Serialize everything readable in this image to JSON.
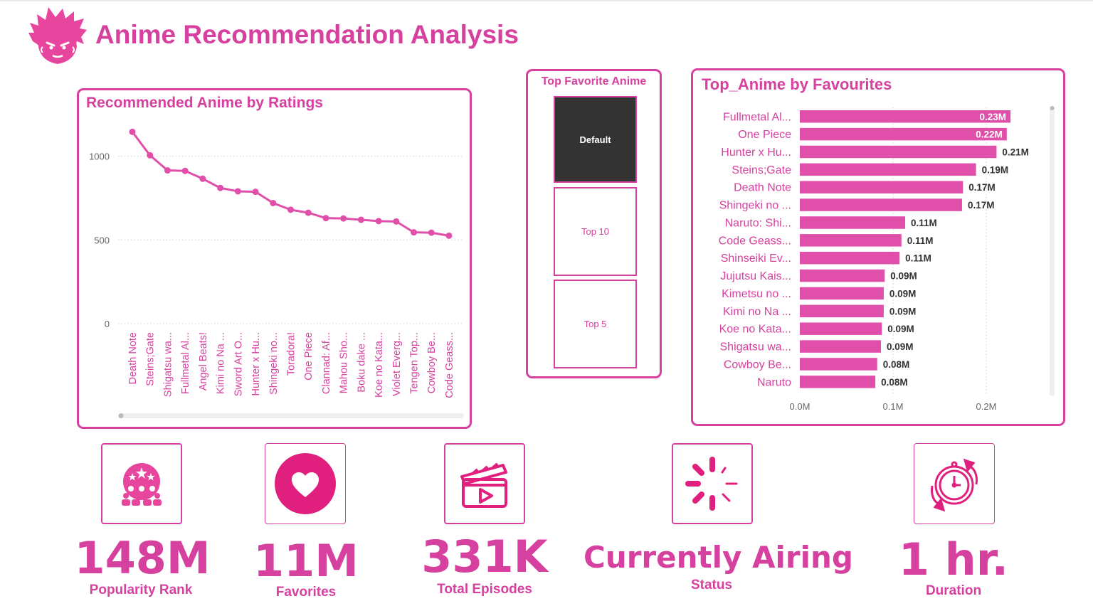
{
  "title": "Anime Recommendation Analysis",
  "line_chart": {
    "title": "Recommended Anime by Ratings",
    "chart_data": {
      "type": "line",
      "categories": [
        "Death Note",
        "Steins;Gate",
        "Shigatsu wa...",
        "Fullmetal Al...",
        "Angel Beats!",
        "Kimi no Na ...",
        "Sword Art O...",
        "Hunter x Hu...",
        "Shingeki no...",
        "Toradora!",
        "One Piece",
        "Clannad: Af...",
        "Mahou Sho...",
        "Boku dake ...",
        "Koe no Kata...",
        "Violet Everg...",
        "Tengen Top...",
        "Cowboy Be...",
        "Code Geass..."
      ],
      "values": [
        1145,
        1005,
        915,
        912,
        865,
        810,
        790,
        787,
        720,
        680,
        662,
        630,
        628,
        620,
        612,
        610,
        545,
        543,
        525
      ],
      "yticks": [
        "0",
        "500",
        "1000"
      ],
      "ylim": [
        0,
        1200
      ],
      "grid": true
    }
  },
  "slicer": {
    "title": "Top Favorite Anime",
    "options": [
      "Default",
      "Top 10",
      "Top 5"
    ],
    "selected": "Default"
  },
  "bar_chart": {
    "title": "Top_Anime by Favourites",
    "chart_data": {
      "type": "bar",
      "orientation": "horizontal",
      "categories": [
        "Fullmetal Al...",
        "One Piece",
        "Hunter x Hu...",
        "Steins;Gate",
        "Death Note",
        "Shingeki no ...",
        "Naruto: Shi...",
        "Code Geass...",
        "Shinseiki Ev...",
        "Jujutsu Kais...",
        "Kimetsu no ...",
        "Kimi no Na ...",
        "Koe no Kata...",
        "Shigatsu wa...",
        "Cowboy Be...",
        "Naruto"
      ],
      "values": [
        0.226,
        0.222,
        0.211,
        0.189,
        0.175,
        0.174,
        0.113,
        0.109,
        0.107,
        0.091,
        0.09,
        0.09,
        0.088,
        0.087,
        0.083,
        0.081
      ],
      "labels": [
        "0.23M",
        "0.22M",
        "0.21M",
        "0.19M",
        "0.17M",
        "0.17M",
        "0.11M",
        "0.11M",
        "0.11M",
        "0.09M",
        "0.09M",
        "0.09M",
        "0.09M",
        "0.09M",
        "0.08M",
        "0.08M"
      ],
      "xticks": [
        "0.0M",
        "0.1M",
        "0.2M"
      ],
      "xlim": [
        0,
        0.25
      ],
      "grid": true
    }
  },
  "kpis": [
    {
      "value": "148M",
      "label": "Popularity Rank",
      "icon": "audience-icon"
    },
    {
      "value": "11M",
      "label": "Favorites",
      "icon": "heart-icon"
    },
    {
      "value": "331K",
      "label": "Total Episodes",
      "icon": "clapperboard-icon"
    },
    {
      "value": "Currently Airing",
      "label": "Status",
      "icon": "loading-spinner-icon"
    },
    {
      "value": "1 hr.",
      "label": "Duration",
      "icon": "stopwatch-icon"
    }
  ],
  "colors": {
    "accent": "#d6409f",
    "bar": "#e04fa9",
    "selected": "#333333",
    "grid": "#cfcfcf",
    "tick": "#666666"
  }
}
